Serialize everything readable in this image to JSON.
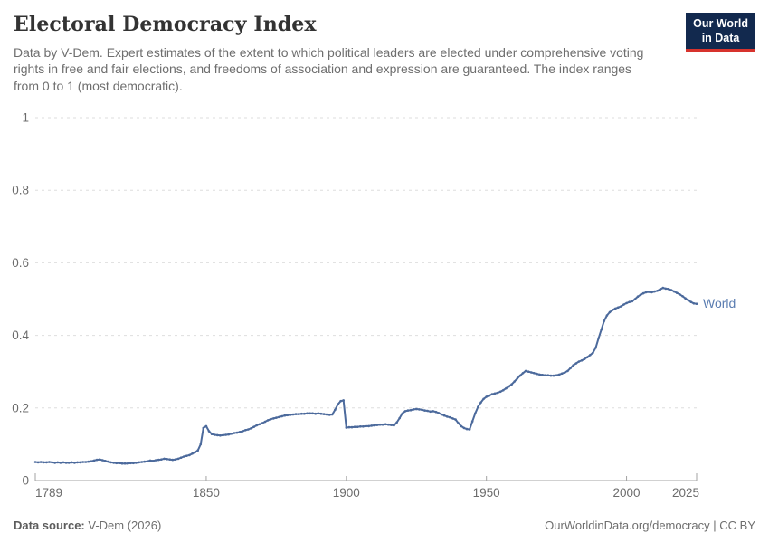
{
  "header": {
    "title": "Electoral Democracy Index",
    "subtitle": "Data by V-Dem. Expert estimates of the extent to which political leaders are elected under comprehensive voting rights in free and fair elections, and freedoms of association and expression are guaranteed. The index ranges from 0 to 1 (most democratic).",
    "logo_line1": "Our World",
    "logo_line2": "in Data"
  },
  "footer": {
    "source_label": "Data source:",
    "source_value": "V-Dem (2026)",
    "right_text": "OurWorldinData.org/democracy | CC BY"
  },
  "colors": {
    "line": "#4c6a9c",
    "series_label": "#5b7db1",
    "grid": "#dedede",
    "axis": "#a3a3a3",
    "tick_text": "#6c6c6c",
    "logo_bg": "#12294e",
    "logo_stripe": "#d7332d"
  },
  "chart_data": {
    "type": "line",
    "title": "Electoral Democracy Index",
    "xlabel": "",
    "ylabel": "",
    "x_range": [
      1789,
      2025
    ],
    "ylim": [
      0,
      1
    ],
    "grid": "dashed-horizontal",
    "legend_position": "end-of-line",
    "x_ticks": [
      {
        "year": 1789,
        "label": "1789",
        "anchor": "start"
      },
      {
        "year": 1850,
        "label": "1850",
        "anchor": "middle"
      },
      {
        "year": 1900,
        "label": "1900",
        "anchor": "middle"
      },
      {
        "year": 1950,
        "label": "1950",
        "anchor": "middle"
      },
      {
        "year": 2000,
        "label": "2000",
        "anchor": "middle"
      },
      {
        "year": 2025,
        "label": "2025",
        "anchor": "end"
      }
    ],
    "y_ticks": [
      {
        "v": 0,
        "label": "0"
      },
      {
        "v": 0.2,
        "label": "0.2"
      },
      {
        "v": 0.4,
        "label": "0.4"
      },
      {
        "v": 0.6,
        "label": "0.6"
      },
      {
        "v": 0.8,
        "label": "0.8"
      },
      {
        "v": 1,
        "label": "1"
      }
    ],
    "series": [
      {
        "name": "World",
        "year_start": 1789,
        "year_step": 1,
        "values": [
          0.051,
          0.05,
          0.051,
          0.05,
          0.05,
          0.051,
          0.05,
          0.049,
          0.05,
          0.049,
          0.05,
          0.049,
          0.049,
          0.05,
          0.049,
          0.05,
          0.05,
          0.051,
          0.051,
          0.052,
          0.053,
          0.055,
          0.057,
          0.058,
          0.056,
          0.054,
          0.052,
          0.05,
          0.049,
          0.048,
          0.048,
          0.047,
          0.047,
          0.047,
          0.048,
          0.048,
          0.049,
          0.05,
          0.051,
          0.052,
          0.053,
          0.055,
          0.054,
          0.056,
          0.057,
          0.058,
          0.06,
          0.059,
          0.058,
          0.057,
          0.058,
          0.06,
          0.063,
          0.066,
          0.068,
          0.07,
          0.074,
          0.078,
          0.083,
          0.1,
          0.145,
          0.15,
          0.136,
          0.128,
          0.126,
          0.125,
          0.124,
          0.125,
          0.126,
          0.127,
          0.129,
          0.131,
          0.132,
          0.134,
          0.136,
          0.139,
          0.141,
          0.144,
          0.148,
          0.152,
          0.155,
          0.158,
          0.162,
          0.166,
          0.169,
          0.171,
          0.173,
          0.175,
          0.177,
          0.179,
          0.18,
          0.181,
          0.182,
          0.183,
          0.183,
          0.184,
          0.184,
          0.185,
          0.185,
          0.185,
          0.184,
          0.185,
          0.184,
          0.183,
          0.182,
          0.181,
          0.182,
          0.195,
          0.21,
          0.219,
          0.221,
          0.146,
          0.147,
          0.147,
          0.148,
          0.148,
          0.149,
          0.149,
          0.15,
          0.15,
          0.151,
          0.152,
          0.153,
          0.154,
          0.154,
          0.155,
          0.154,
          0.153,
          0.152,
          0.16,
          0.172,
          0.185,
          0.191,
          0.193,
          0.194,
          0.196,
          0.197,
          0.196,
          0.195,
          0.193,
          0.192,
          0.19,
          0.191,
          0.189,
          0.186,
          0.182,
          0.179,
          0.176,
          0.174,
          0.171,
          0.168,
          0.158,
          0.15,
          0.145,
          0.142,
          0.141,
          0.163,
          0.185,
          0.203,
          0.215,
          0.225,
          0.231,
          0.234,
          0.238,
          0.24,
          0.242,
          0.245,
          0.249,
          0.254,
          0.259,
          0.265,
          0.273,
          0.281,
          0.289,
          0.296,
          0.302,
          0.3,
          0.298,
          0.296,
          0.294,
          0.292,
          0.291,
          0.29,
          0.29,
          0.289,
          0.289,
          0.29,
          0.292,
          0.295,
          0.298,
          0.302,
          0.31,
          0.318,
          0.323,
          0.328,
          0.331,
          0.335,
          0.34,
          0.346,
          0.352,
          0.366,
          0.392,
          0.416,
          0.44,
          0.455,
          0.464,
          0.47,
          0.474,
          0.477,
          0.48,
          0.485,
          0.489,
          0.492,
          0.494,
          0.5,
          0.507,
          0.512,
          0.516,
          0.519,
          0.52,
          0.519,
          0.521,
          0.523,
          0.527,
          0.531,
          0.529,
          0.528,
          0.525,
          0.521,
          0.517,
          0.513,
          0.508,
          0.502,
          0.497,
          0.492,
          0.488,
          0.487
        ]
      }
    ]
  }
}
